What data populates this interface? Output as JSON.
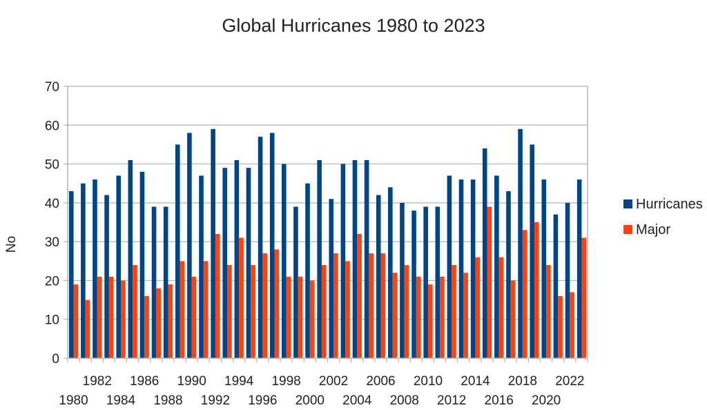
{
  "chart_data": {
    "type": "bar",
    "title": "Global Hurricanes 1980 to 2023",
    "xlabel": "",
    "ylabel": "No",
    "ylim": [
      0,
      70
    ],
    "yticks": [
      0,
      10,
      20,
      30,
      40,
      50,
      60,
      70
    ],
    "grid": true,
    "legend_position": "right",
    "categories": [
      "1980",
      "1981",
      "1982",
      "1983",
      "1984",
      "1985",
      "1986",
      "1987",
      "1988",
      "1989",
      "1990",
      "1991",
      "1992",
      "1993",
      "1994",
      "1995",
      "1996",
      "1997",
      "1998",
      "1999",
      "2000",
      "2001",
      "2002",
      "2003",
      "2004",
      "2005",
      "2006",
      "2007",
      "2008",
      "2009",
      "2010",
      "2011",
      "2012",
      "2013",
      "2014",
      "2015",
      "2016",
      "2017",
      "2018",
      "2019",
      "2020",
      "2021",
      "2022",
      "2023"
    ],
    "tick_labels_shown": [
      "1980",
      "1982",
      "1984",
      "1986",
      "1988",
      "1990",
      "1992",
      "1994",
      "1996",
      "1998",
      "2000",
      "2002",
      "2004",
      "2006",
      "2008",
      "2010",
      "2012",
      "2014",
      "2016",
      "2018",
      "2020",
      "2022"
    ],
    "series": [
      {
        "name": "Hurricanes",
        "color": "#004586",
        "values": [
          43,
          45,
          46,
          42,
          47,
          51,
          48,
          39,
          39,
          55,
          58,
          47,
          59,
          49,
          51,
          49,
          57,
          58,
          50,
          39,
          45,
          51,
          41,
          50,
          51,
          51,
          42,
          44,
          40,
          38,
          39,
          39,
          47,
          46,
          46,
          54,
          47,
          43,
          59,
          55,
          46,
          37,
          40,
          46
        ]
      },
      {
        "name": "Major",
        "color": "#ff420e",
        "values": [
          19,
          15,
          21,
          21,
          20,
          24,
          16,
          18,
          19,
          25,
          21,
          25,
          32,
          24,
          31,
          24,
          27,
          28,
          21,
          21,
          20,
          24,
          27,
          25,
          32,
          27,
          27,
          22,
          24,
          21,
          19,
          21,
          24,
          22,
          26,
          39,
          26,
          20,
          33,
          35,
          24,
          16,
          17,
          31
        ]
      }
    ]
  }
}
